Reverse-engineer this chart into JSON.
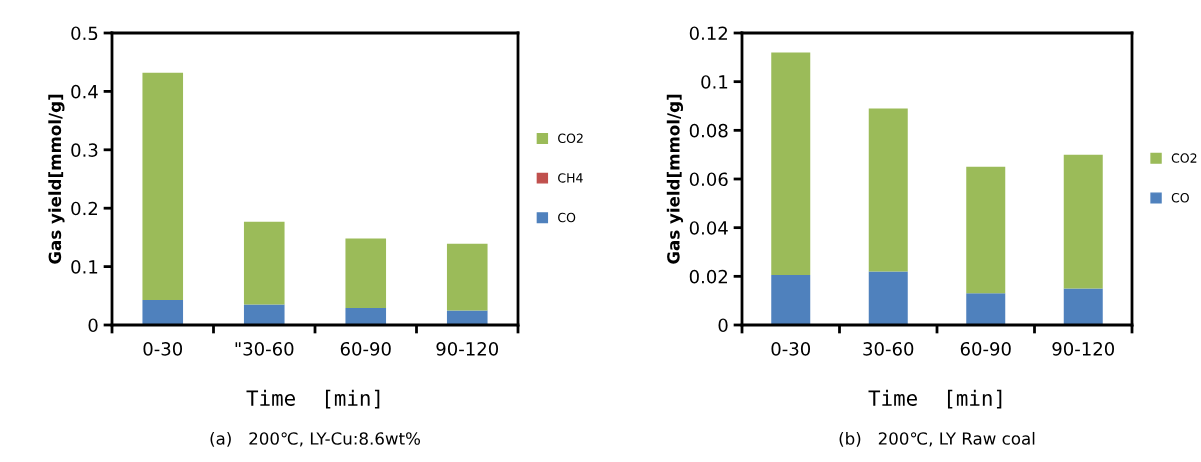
{
  "chart_data": [
    {
      "type": "bar",
      "stacked": true,
      "xlabel": "Time  [min]",
      "ylabel": "Gas yield[mmol/g]",
      "categories": [
        "0-30",
        "\"30-60",
        "60-90",
        "90-120"
      ],
      "ylim": [
        0,
        0.5
      ],
      "yticks": [
        0,
        0.1,
        0.2,
        0.3,
        0.4,
        0.5
      ],
      "grid": false,
      "legend": "right",
      "series": [
        {
          "name": "CO",
          "color": "#4f81bd",
          "values": [
            0.043,
            0.035,
            0.029,
            0.025
          ]
        },
        {
          "name": "CH4",
          "color": "#c0504d",
          "values": [
            0,
            0,
            0,
            0
          ]
        },
        {
          "name": "CO2",
          "color": "#9bbb59",
          "values": [
            0.389,
            0.142,
            0.119,
            0.114
          ]
        }
      ],
      "annotations": [
        "(a)   200℃, LY-Cu:8.6wt%"
      ]
    },
    {
      "type": "bar",
      "stacked": true,
      "xlabel": "Time  [min]",
      "ylabel": "Gas yield[mmol/g]",
      "categories": [
        "0-30",
        "30-60",
        "60-90",
        "90-120"
      ],
      "ylim": [
        0,
        0.12
      ],
      "yticks": [
        0,
        0.02,
        0.04,
        0.06,
        0.08,
        0.1,
        0.12
      ],
      "grid": false,
      "legend": "right",
      "series": [
        {
          "name": "CO",
          "color": "#4f81bd",
          "values": [
            0.0205,
            0.022,
            0.013,
            0.015
          ]
        },
        {
          "name": "CO2",
          "color": "#9bbb59",
          "values": [
            0.0915,
            0.067,
            0.052,
            0.055
          ]
        }
      ],
      "annotations": [
        "(b)   200℃, LY Raw coal"
      ]
    }
  ]
}
